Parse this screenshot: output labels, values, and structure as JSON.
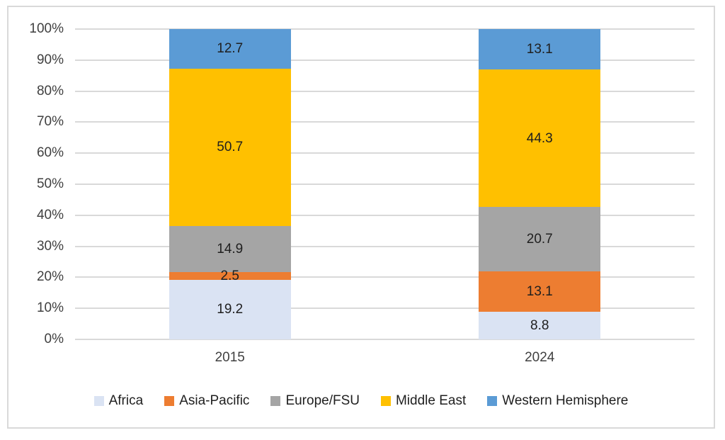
{
  "chart_data": {
    "type": "bar",
    "variant": "stacked-percent-column",
    "title": "",
    "xlabel": "",
    "ylabel": "",
    "categories": [
      "2015",
      "2024"
    ],
    "series": [
      {
        "name": "Africa",
        "color": "#dae3f3",
        "values": [
          19.2,
          8.8
        ]
      },
      {
        "name": "Asia-Pacific",
        "color": "#ed7d31",
        "values": [
          2.5,
          13.1
        ]
      },
      {
        "name": "Europe/FSU",
        "color": "#a5a5a5",
        "values": [
          14.9,
          20.7
        ]
      },
      {
        "name": "Middle East",
        "color": "#ffc000",
        "values": [
          50.7,
          44.3
        ]
      },
      {
        "name": "Western Hemisphere",
        "color": "#5b9bd5",
        "values": [
          12.7,
          13.1
        ]
      }
    ],
    "y_axis": {
      "min": 0,
      "max": 100,
      "step": 10,
      "tick_labels": [
        "0%",
        "10%",
        "20%",
        "30%",
        "40%",
        "50%",
        "60%",
        "70%",
        "80%",
        "90%",
        "100%"
      ]
    },
    "data_labels_shown": true,
    "grid": true,
    "legend_position": "bottom"
  },
  "colors": {
    "gridline": "#d9d9d9",
    "frame_border": "#d9d9d9",
    "axis_text": "#404040",
    "label_text": "#1f1f1f",
    "background": "#ffffff"
  }
}
